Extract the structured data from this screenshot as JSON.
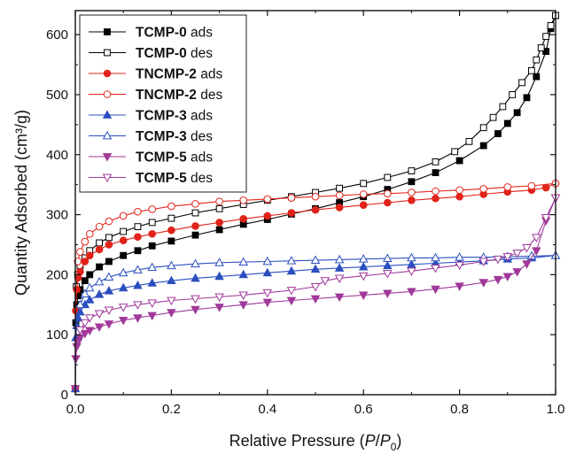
{
  "chart_data": {
    "type": "line",
    "title": "",
    "xlabel": {
      "prefix": "Relative Pressure (",
      "p": "P",
      "slash": "/",
      "p0": "P",
      "sub": "0",
      "suffix": ")"
    },
    "ylabel": "Quantity Adsorbed (cm³/g)",
    "xlim": [
      0,
      1
    ],
    "ylim": [
      0,
      640
    ],
    "xticks": [
      0.0,
      0.2,
      0.4,
      0.6,
      0.8,
      1.0
    ],
    "xtick_labels": [
      "0.0",
      "0.2",
      "0.4",
      "0.6",
      "0.8",
      "1.0"
    ],
    "yticks": [
      0,
      100,
      200,
      300,
      400,
      500,
      600
    ],
    "ytick_labels": [
      "0",
      "100",
      "200",
      "300",
      "400",
      "500",
      "600"
    ],
    "grid": false,
    "legend_position": "top-left",
    "series": [
      {
        "name": "TCMP-0",
        "suffix": " ads",
        "color": "#000000",
        "marker": "square",
        "filled": true,
        "x": [
          0.0,
          0.001,
          0.003,
          0.006,
          0.01,
          0.02,
          0.03,
          0.05,
          0.07,
          0.1,
          0.13,
          0.16,
          0.2,
          0.25,
          0.3,
          0.35,
          0.4,
          0.45,
          0.5,
          0.55,
          0.6,
          0.65,
          0.7,
          0.75,
          0.8,
          0.85,
          0.88,
          0.9,
          0.92,
          0.94,
          0.96,
          0.98,
          0.99,
          1.0
        ],
        "y": [
          10,
          120,
          150,
          165,
          175,
          190,
          200,
          213,
          222,
          232,
          240,
          248,
          256,
          266,
          275,
          284,
          292,
          301,
          310,
          320,
          330,
          342,
          355,
          370,
          390,
          415,
          435,
          452,
          470,
          495,
          530,
          572,
          610,
          632
        ]
      },
      {
        "name": "TCMP-0",
        "suffix": " des",
        "color": "#000000",
        "marker": "square",
        "filled": false,
        "x": [
          1.0,
          0.99,
          0.98,
          0.97,
          0.96,
          0.95,
          0.93,
          0.91,
          0.89,
          0.87,
          0.85,
          0.82,
          0.79,
          0.75,
          0.7,
          0.65,
          0.6,
          0.55,
          0.5,
          0.45,
          0.4,
          0.35,
          0.3,
          0.25,
          0.2,
          0.16,
          0.13,
          0.1,
          0.07,
          0.05,
          0.03,
          0.02,
          0.01,
          0.005,
          0.002
        ],
        "y": [
          632,
          615,
          597,
          578,
          558,
          540,
          520,
          500,
          480,
          462,
          445,
          422,
          405,
          388,
          373,
          362,
          352,
          344,
          337,
          330,
          324,
          317,
          310,
          303,
          294,
          287,
          280,
          272,
          262,
          253,
          240,
          228,
          215,
          200,
          180
        ]
      },
      {
        "name": "TNCMP-2",
        "suffix": " ads",
        "color": "#e2231a",
        "marker": "circle",
        "filled": true,
        "x": [
          0.0,
          0.001,
          0.003,
          0.006,
          0.01,
          0.02,
          0.03,
          0.05,
          0.07,
          0.1,
          0.13,
          0.16,
          0.2,
          0.25,
          0.3,
          0.35,
          0.4,
          0.45,
          0.5,
          0.55,
          0.6,
          0.65,
          0.7,
          0.75,
          0.8,
          0.85,
          0.9,
          0.95,
          0.98,
          1.0
        ],
        "y": [
          10,
          140,
          175,
          195,
          205,
          222,
          232,
          242,
          250,
          257,
          263,
          268,
          274,
          281,
          287,
          293,
          298,
          303,
          308,
          312,
          316,
          320,
          324,
          327,
          330,
          334,
          338,
          341,
          345,
          352
        ]
      },
      {
        "name": "TNCMP-2",
        "suffix": " des",
        "color": "#e2231a",
        "marker": "circle",
        "filled": false,
        "x": [
          1.0,
          0.95,
          0.9,
          0.85,
          0.8,
          0.75,
          0.7,
          0.65,
          0.6,
          0.55,
          0.5,
          0.45,
          0.4,
          0.35,
          0.3,
          0.25,
          0.2,
          0.16,
          0.13,
          0.1,
          0.07,
          0.05,
          0.03,
          0.02,
          0.01,
          0.005
        ],
        "y": [
          352,
          348,
          346,
          343,
          341,
          339,
          337,
          335,
          334,
          332,
          330,
          328,
          326,
          324,
          322,
          318,
          314,
          309,
          305,
          298,
          289,
          280,
          268,
          255,
          238,
          222
        ]
      },
      {
        "name": "TCMP-3",
        "suffix": " ads",
        "color": "#2b4fc0",
        "marker": "triangle-up",
        "filled": true,
        "x": [
          0.0,
          0.001,
          0.003,
          0.006,
          0.01,
          0.02,
          0.03,
          0.05,
          0.07,
          0.1,
          0.13,
          0.16,
          0.2,
          0.25,
          0.3,
          0.35,
          0.4,
          0.45,
          0.5,
          0.55,
          0.6,
          0.65,
          0.7,
          0.75,
          0.8,
          0.85,
          0.9,
          0.95,
          1.0
        ],
        "y": [
          10,
          95,
          115,
          128,
          138,
          150,
          158,
          167,
          173,
          178,
          182,
          186,
          190,
          194,
          197,
          200,
          203,
          206,
          209,
          211,
          213,
          215,
          217,
          219,
          221,
          223,
          226,
          228,
          232
        ]
      },
      {
        "name": "TCMP-3",
        "suffix": " des",
        "color": "#2b4fc0",
        "marker": "triangle-up",
        "filled": false,
        "x": [
          1.0,
          0.95,
          0.9,
          0.85,
          0.8,
          0.75,
          0.7,
          0.65,
          0.6,
          0.55,
          0.5,
          0.45,
          0.4,
          0.35,
          0.3,
          0.25,
          0.2,
          0.16,
          0.13,
          0.1,
          0.07,
          0.05,
          0.03,
          0.02,
          0.01
        ],
        "y": [
          232,
          231,
          230,
          229,
          229,
          228,
          228,
          227,
          226,
          225,
          224,
          223,
          222,
          221,
          220,
          218,
          215,
          212,
          208,
          203,
          196,
          188,
          178,
          168,
          150
        ]
      },
      {
        "name": "TCMP-5",
        "suffix": " ads",
        "color": "#a0399a",
        "marker": "triangle-down",
        "filled": true,
        "x": [
          0.0,
          0.001,
          0.003,
          0.006,
          0.01,
          0.02,
          0.03,
          0.05,
          0.07,
          0.1,
          0.13,
          0.16,
          0.2,
          0.25,
          0.3,
          0.35,
          0.4,
          0.45,
          0.5,
          0.55,
          0.6,
          0.65,
          0.7,
          0.75,
          0.8,
          0.85,
          0.88,
          0.9,
          0.92,
          0.94,
          0.96,
          0.98,
          1.0
        ],
        "y": [
          10,
          60,
          80,
          88,
          95,
          102,
          107,
          113,
          118,
          124,
          128,
          132,
          137,
          142,
          146,
          150,
          154,
          157,
          160,
          163,
          166,
          169,
          172,
          176,
          181,
          187,
          192,
          197,
          205,
          218,
          240,
          290,
          328
        ]
      },
      {
        "name": "TCMP-5",
        "suffix": " des",
        "color": "#a0399a",
        "marker": "triangle-down",
        "filled": false,
        "x": [
          1.0,
          0.98,
          0.96,
          0.94,
          0.92,
          0.9,
          0.88,
          0.85,
          0.8,
          0.75,
          0.7,
          0.65,
          0.6,
          0.55,
          0.52,
          0.5,
          0.45,
          0.4,
          0.35,
          0.3,
          0.25,
          0.2,
          0.16,
          0.13,
          0.1,
          0.07,
          0.05,
          0.03,
          0.02,
          0.01
        ],
        "y": [
          328,
          295,
          262,
          245,
          236,
          230,
          226,
          222,
          216,
          211,
          206,
          202,
          198,
          194,
          190,
          180,
          174,
          170,
          166,
          163,
          160,
          157,
          153,
          150,
          146,
          141,
          135,
          128,
          120,
          108
        ]
      }
    ]
  }
}
